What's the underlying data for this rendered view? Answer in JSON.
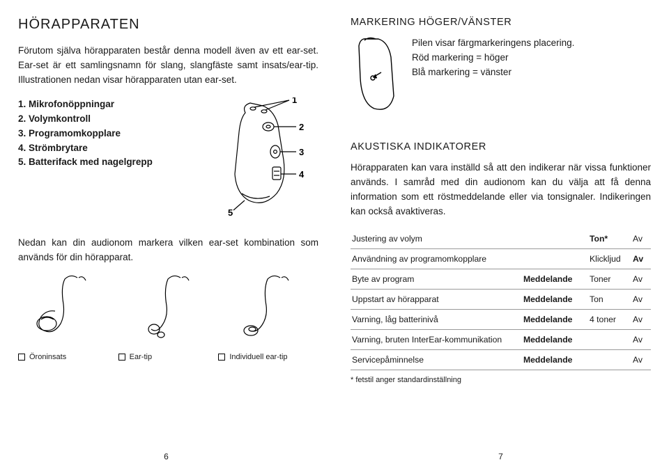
{
  "left": {
    "title": "HÖRAPPARATEN",
    "intro": "Förutom själva hörapparaten består denna modell även av ett ear-set. Ear-set är ett samlingsnamn för slang, slangfäste samt insats/ear-tip. Illustrationen nedan visar hörapparaten utan ear-set.",
    "parts": [
      "Mikrofonöppningar",
      "Volymkontroll",
      "Programomkopplare",
      "Strömbrytare",
      "Batterifack med nagelgrepp"
    ],
    "below": "Nedan kan din audionom markera vilken ear-set kombination som används för din hörapparat.",
    "options": [
      "Öroninsats",
      "Ear-tip",
      "Individuell ear-tip"
    ],
    "pagenum": "6"
  },
  "right": {
    "markerTitle": "MARKERING HÖGER/VÄNSTER",
    "markerText": "Pilen visar färgmarkeringens place­ring.\nRöd markering = höger\nBlå markering = vänster",
    "akTitle": "AKUSTISKA INDIKATORER",
    "akText": "Hörapparaten kan vara inställd så att den indikerar när vissa funktioner används. I samråd med din au­dionom kan du välja att få denna information som ett röstmeddelande eller via tonsignaler. Indikeringen kan också avaktiveras.",
    "table": [
      {
        "a": "Justering av volym",
        "b": "",
        "c": "Ton*",
        "d": "Av",
        "bold": "c"
      },
      {
        "a": "Användning av programomkopplare",
        "b": "",
        "c": "Klickljud",
        "d": "Av",
        "bold": "d"
      },
      {
        "a": "Byte av program",
        "b": "Meddelande",
        "c": "Toner",
        "d": "Av",
        "bold": "b"
      },
      {
        "a": "Uppstart av hörapparat",
        "b": "Meddelande",
        "c": "Ton",
        "d": "Av",
        "bold": "b"
      },
      {
        "a": "Varning, låg batterinivå",
        "b": "Meddelande",
        "c": "4 toner",
        "d": "Av",
        "bold": "b"
      },
      {
        "a": "Varning, bruten InterEar-kommunikation",
        "b": "Meddelande",
        "c": "",
        "d": "Av",
        "bold": "b"
      },
      {
        "a": "Servicepåminnelse",
        "b": "Meddelande",
        "c": "",
        "d": "Av",
        "bold": "b"
      }
    ],
    "footnote": "* fetstil anger standardinställning",
    "pagenum": "7"
  }
}
